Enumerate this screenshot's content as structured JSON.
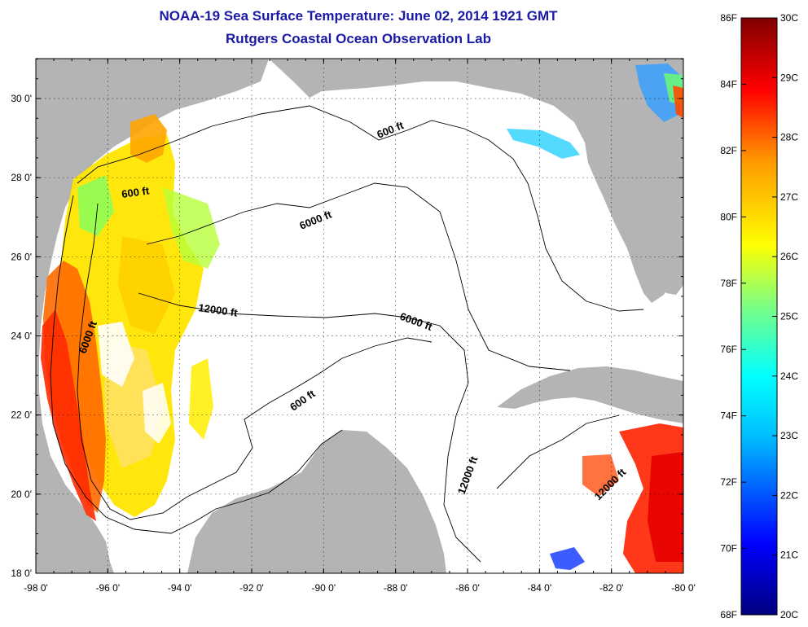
{
  "title": "NOAA-19 Sea Surface Temperature:  June 02, 2014 1921 GMT",
  "subtitle": "Rutgers Coastal Ocean Observation Lab",
  "x_ticks": [
    "-98 0'",
    "-96 0'",
    "-94 0'",
    "-92 0'",
    "-90 0'",
    "-88 0'",
    "-86 0'",
    "-84 0'",
    "-82 0'",
    "-80 0'"
  ],
  "y_ticks": [
    "30 0'",
    "28 0'",
    "26 0'",
    "24 0'",
    "22 0'",
    "20 0'",
    "18 0'"
  ],
  "contour_labels": [
    "600 ft",
    "600 ft",
    "6000 ft",
    "12000 ft",
    "6000 ft",
    "6000 ft",
    "600 ft",
    "12000 ft",
    "12000 ft"
  ],
  "colorbar": {
    "fahrenheit": [
      "86F",
      "84F",
      "82F",
      "80F",
      "78F",
      "76F",
      "74F",
      "72F",
      "70F",
      "68F"
    ],
    "celsius": [
      "30C",
      "29C",
      "28C",
      "27C",
      "26C",
      "25C",
      "24C",
      "23C",
      "22C",
      "21C",
      "20C"
    ]
  },
  "colors": {
    "land": "#b4b4b4",
    "title": "#1a1aa6",
    "ocean_no_data": "#ffffff"
  }
}
